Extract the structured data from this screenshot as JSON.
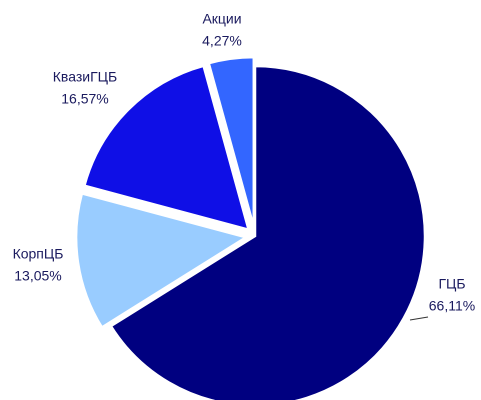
{
  "chart_data": {
    "type": "pie",
    "categories": [
      "ГЦБ",
      "КорпЦБ",
      "КвазиГЦБ",
      "Акции"
    ],
    "values": [
      66.11,
      13.05,
      16.57,
      4.27
    ],
    "value_labels": [
      "66,11%",
      "13,05%",
      "16,57%",
      "4,27%"
    ],
    "colors": [
      "#000080",
      "#99ccff",
      "#0f0fe6",
      "#3366ff"
    ]
  }
}
